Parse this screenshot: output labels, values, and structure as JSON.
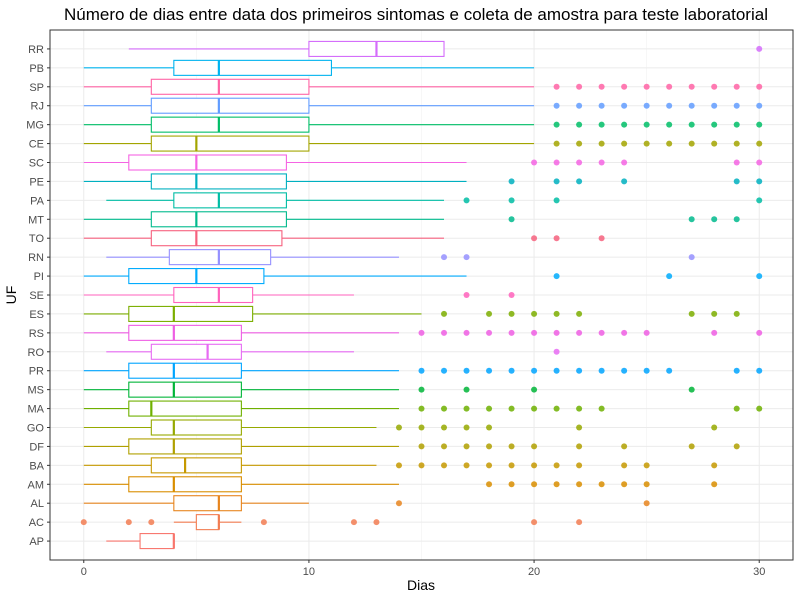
{
  "chart_data": {
    "type": "boxplot",
    "title": "Número de dias entre data dos primeiros sintomas e coleta de amostra para teste laboratorial",
    "xlabel": "Dias",
    "ylabel": "UF",
    "xlim": [
      -1.5,
      31.5
    ],
    "xticks": [
      0,
      10,
      20,
      30
    ],
    "grid": true,
    "legend": "none",
    "categories": [
      "AP",
      "AC",
      "AL",
      "AM",
      "BA",
      "DF",
      "GO",
      "MA",
      "MS",
      "PR",
      "RO",
      "RS",
      "ES",
      "SE",
      "PI",
      "RN",
      "TO",
      "MT",
      "PA",
      "PE",
      "SC",
      "CE",
      "MG",
      "RJ",
      "SP",
      "PB",
      "RR"
    ],
    "boxes": [
      {
        "uf": "AP",
        "color": "#F8766D",
        "min": 1,
        "q1": 2.5,
        "median": 4,
        "q3": 4,
        "max": 4,
        "outliers": []
      },
      {
        "uf": "AC",
        "color": "#F27D52",
        "min": 4,
        "q1": 5,
        "median": 6,
        "q3": 6,
        "max": 7,
        "outliers": [
          0,
          2,
          3,
          8,
          12,
          13,
          20,
          22
        ]
      },
      {
        "uf": "AL",
        "color": "#E7851E",
        "min": 0,
        "q1": 4,
        "median": 6,
        "q3": 7,
        "max": 10,
        "outliers": [
          14,
          25
        ]
      },
      {
        "uf": "AM",
        "color": "#D98E00",
        "min": 0,
        "q1": 2,
        "median": 4,
        "q3": 7,
        "max": 14,
        "outliers": [
          18,
          19,
          20,
          21,
          22,
          23,
          24,
          25,
          28
        ]
      },
      {
        "uf": "BA",
        "color": "#C69900",
        "min": 0,
        "q1": 3,
        "median": 4.5,
        "q3": 7,
        "max": 13,
        "outliers": [
          14,
          15,
          16,
          17,
          18,
          19,
          20,
          21,
          22,
          24,
          25,
          28
        ]
      },
      {
        "uf": "DF",
        "color": "#B0A000",
        "min": 0,
        "q1": 2,
        "median": 4,
        "q3": 7,
        "max": 14,
        "outliers": [
          15,
          16,
          17,
          18,
          19,
          20,
          22,
          24,
          27,
          29
        ]
      },
      {
        "uf": "GO",
        "color": "#96A900",
        "min": 0,
        "q1": 3,
        "median": 4,
        "q3": 7,
        "max": 13,
        "outliers": [
          14,
          15,
          16,
          17,
          18,
          22,
          28
        ]
      },
      {
        "uf": "MA",
        "color": "#6FB000",
        "min": 0,
        "q1": 2,
        "median": 3,
        "q3": 7,
        "max": 14,
        "outliers": [
          15,
          16,
          17,
          18,
          19,
          20,
          21,
          22,
          23,
          29,
          30
        ]
      },
      {
        "uf": "MS",
        "color": "#00B538",
        "min": 0,
        "q1": 2,
        "median": 4,
        "q3": 7,
        "max": 14,
        "outliers": [
          15,
          17,
          20,
          27
        ]
      },
      {
        "uf": "PR",
        "color": "#00A5FF",
        "min": 0,
        "q1": 2,
        "median": 4,
        "q3": 7,
        "max": 14,
        "outliers": [
          15,
          16,
          17,
          18,
          19,
          20,
          21,
          22,
          23,
          24,
          25,
          26,
          29,
          30
        ]
      },
      {
        "uf": "RO",
        "color": "#E76BF3",
        "min": 1,
        "q1": 3,
        "median": 5.5,
        "q3": 7,
        "max": 12,
        "outliers": [
          21
        ]
      },
      {
        "uf": "RS",
        "color": "#EE5EE3",
        "min": 0,
        "q1": 2,
        "median": 4,
        "q3": 7,
        "max": 14,
        "outliers": [
          15,
          16,
          17,
          18,
          19,
          20,
          21,
          22,
          23,
          24,
          25,
          28,
          30
        ]
      },
      {
        "uf": "ES",
        "color": "#7CAE00",
        "min": 0,
        "q1": 2,
        "median": 4,
        "q3": 7.5,
        "max": 15,
        "outliers": [
          16,
          18,
          19,
          20,
          21,
          22,
          27,
          28,
          29
        ]
      },
      {
        "uf": "SE",
        "color": "#FF62BC",
        "min": 0,
        "q1": 4,
        "median": 6,
        "q3": 7.5,
        "max": 12,
        "outliers": [
          17,
          19
        ]
      },
      {
        "uf": "PI",
        "color": "#00ABFD",
        "min": 0,
        "q1": 2,
        "median": 5,
        "q3": 8,
        "max": 17,
        "outliers": [
          21,
          26,
          30
        ]
      },
      {
        "uf": "RN",
        "color": "#9590FF",
        "min": 1,
        "q1": 3.8,
        "median": 6,
        "q3": 8.3,
        "max": 14,
        "outliers": [
          16,
          17,
          27
        ]
      },
      {
        "uf": "TO",
        "color": "#F6617E",
        "min": 0,
        "q1": 3,
        "median": 5,
        "q3": 8.8,
        "max": 16,
        "outliers": [
          20,
          21,
          23
        ]
      },
      {
        "uf": "MT",
        "color": "#00BA8D",
        "min": 0,
        "q1": 3,
        "median": 5,
        "q3": 9,
        "max": 16,
        "outliers": [
          19,
          27,
          28,
          29
        ]
      },
      {
        "uf": "PA",
        "color": "#00BDA5",
        "min": 1,
        "q1": 4,
        "median": 6,
        "q3": 9,
        "max": 16,
        "outliers": [
          17,
          19,
          21,
          30
        ]
      },
      {
        "uf": "PE",
        "color": "#00B0C0",
        "min": 0,
        "q1": 3,
        "median": 5,
        "q3": 9,
        "max": 17,
        "outliers": [
          19,
          21,
          22,
          24,
          29,
          30
        ]
      },
      {
        "uf": "SC",
        "color": "#F564E3",
        "min": 0,
        "q1": 2,
        "median": 5,
        "q3": 9,
        "max": 17,
        "outliers": [
          20,
          21,
          22,
          23,
          24,
          29,
          30
        ]
      },
      {
        "uf": "CE",
        "color": "#A3A500",
        "min": 0,
        "q1": 3,
        "median": 5,
        "q3": 10,
        "max": 20,
        "outliers": [
          21,
          22,
          23,
          24,
          25,
          26,
          27,
          28,
          29,
          30
        ]
      },
      {
        "uf": "MG",
        "color": "#00BE67",
        "min": 0,
        "q1": 3,
        "median": 6,
        "q3": 10,
        "max": 20,
        "outliers": [
          21,
          22,
          23,
          24,
          25,
          26,
          27,
          28,
          29,
          30
        ]
      },
      {
        "uf": "RJ",
        "color": "#619CFF",
        "min": 0,
        "q1": 3,
        "median": 6,
        "q3": 10,
        "max": 20,
        "outliers": [
          21,
          22,
          23,
          24,
          25,
          26,
          27,
          28,
          29,
          30
        ]
      },
      {
        "uf": "SP",
        "color": "#FF63A5",
        "min": 0,
        "q1": 3,
        "median": 6,
        "q3": 10,
        "max": 20,
        "outliers": [
          21,
          22,
          23,
          24,
          25,
          26,
          27,
          28,
          29,
          30
        ]
      },
      {
        "uf": "PB",
        "color": "#00B4EF",
        "min": 0,
        "q1": 4,
        "median": 6,
        "q3": 11,
        "max": 20,
        "outliers": []
      },
      {
        "uf": "RR",
        "color": "#D46CFB",
        "min": 2,
        "q1": 10,
        "median": 13,
        "q3": 16,
        "max": 16,
        "outliers": [
          30
        ]
      }
    ]
  }
}
